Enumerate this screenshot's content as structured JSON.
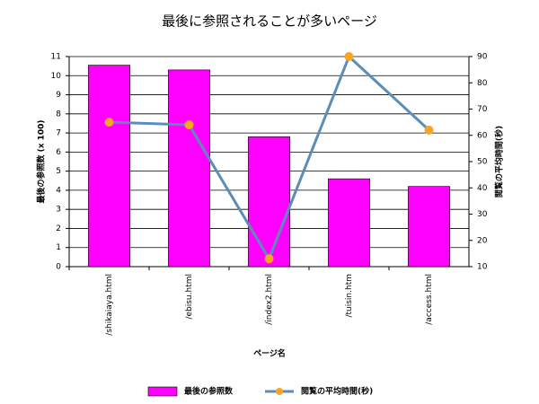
{
  "chart_data": {
    "type": "bar",
    "title": "最後に参照されることが多いページ",
    "x_label": "ページ名",
    "y_label": "最後の参照数 (x 100)",
    "y2_label": "閲覧の平均時間(秒)",
    "categories": [
      "/shikaiaya.html",
      "/ebisu.html",
      "/index2.html",
      "/tuisin.htm",
      "/access.html"
    ],
    "series": [
      {
        "name": "最後の参照数",
        "type": "bar",
        "color": "#ff00ff",
        "values": [
          10.55,
          10.3,
          6.8,
          4.6,
          4.2
        ]
      },
      {
        "name": "閲覧の平均時間(秒)",
        "type": "line",
        "axis": "y2",
        "color": "#5b8db8",
        "marker_color": "#f5a623",
        "values": [
          65,
          64,
          13,
          90,
          62
        ]
      }
    ],
    "ylim": [
      0,
      11
    ],
    "yticks": [
      0,
      1,
      2,
      3,
      4,
      5,
      6,
      7,
      8,
      9,
      10,
      11
    ],
    "y2lim": [
      10,
      90
    ],
    "y2ticks": [
      10,
      20,
      30,
      40,
      50,
      60,
      70,
      80,
      90
    ],
    "grid": true,
    "legend": "bottom"
  }
}
